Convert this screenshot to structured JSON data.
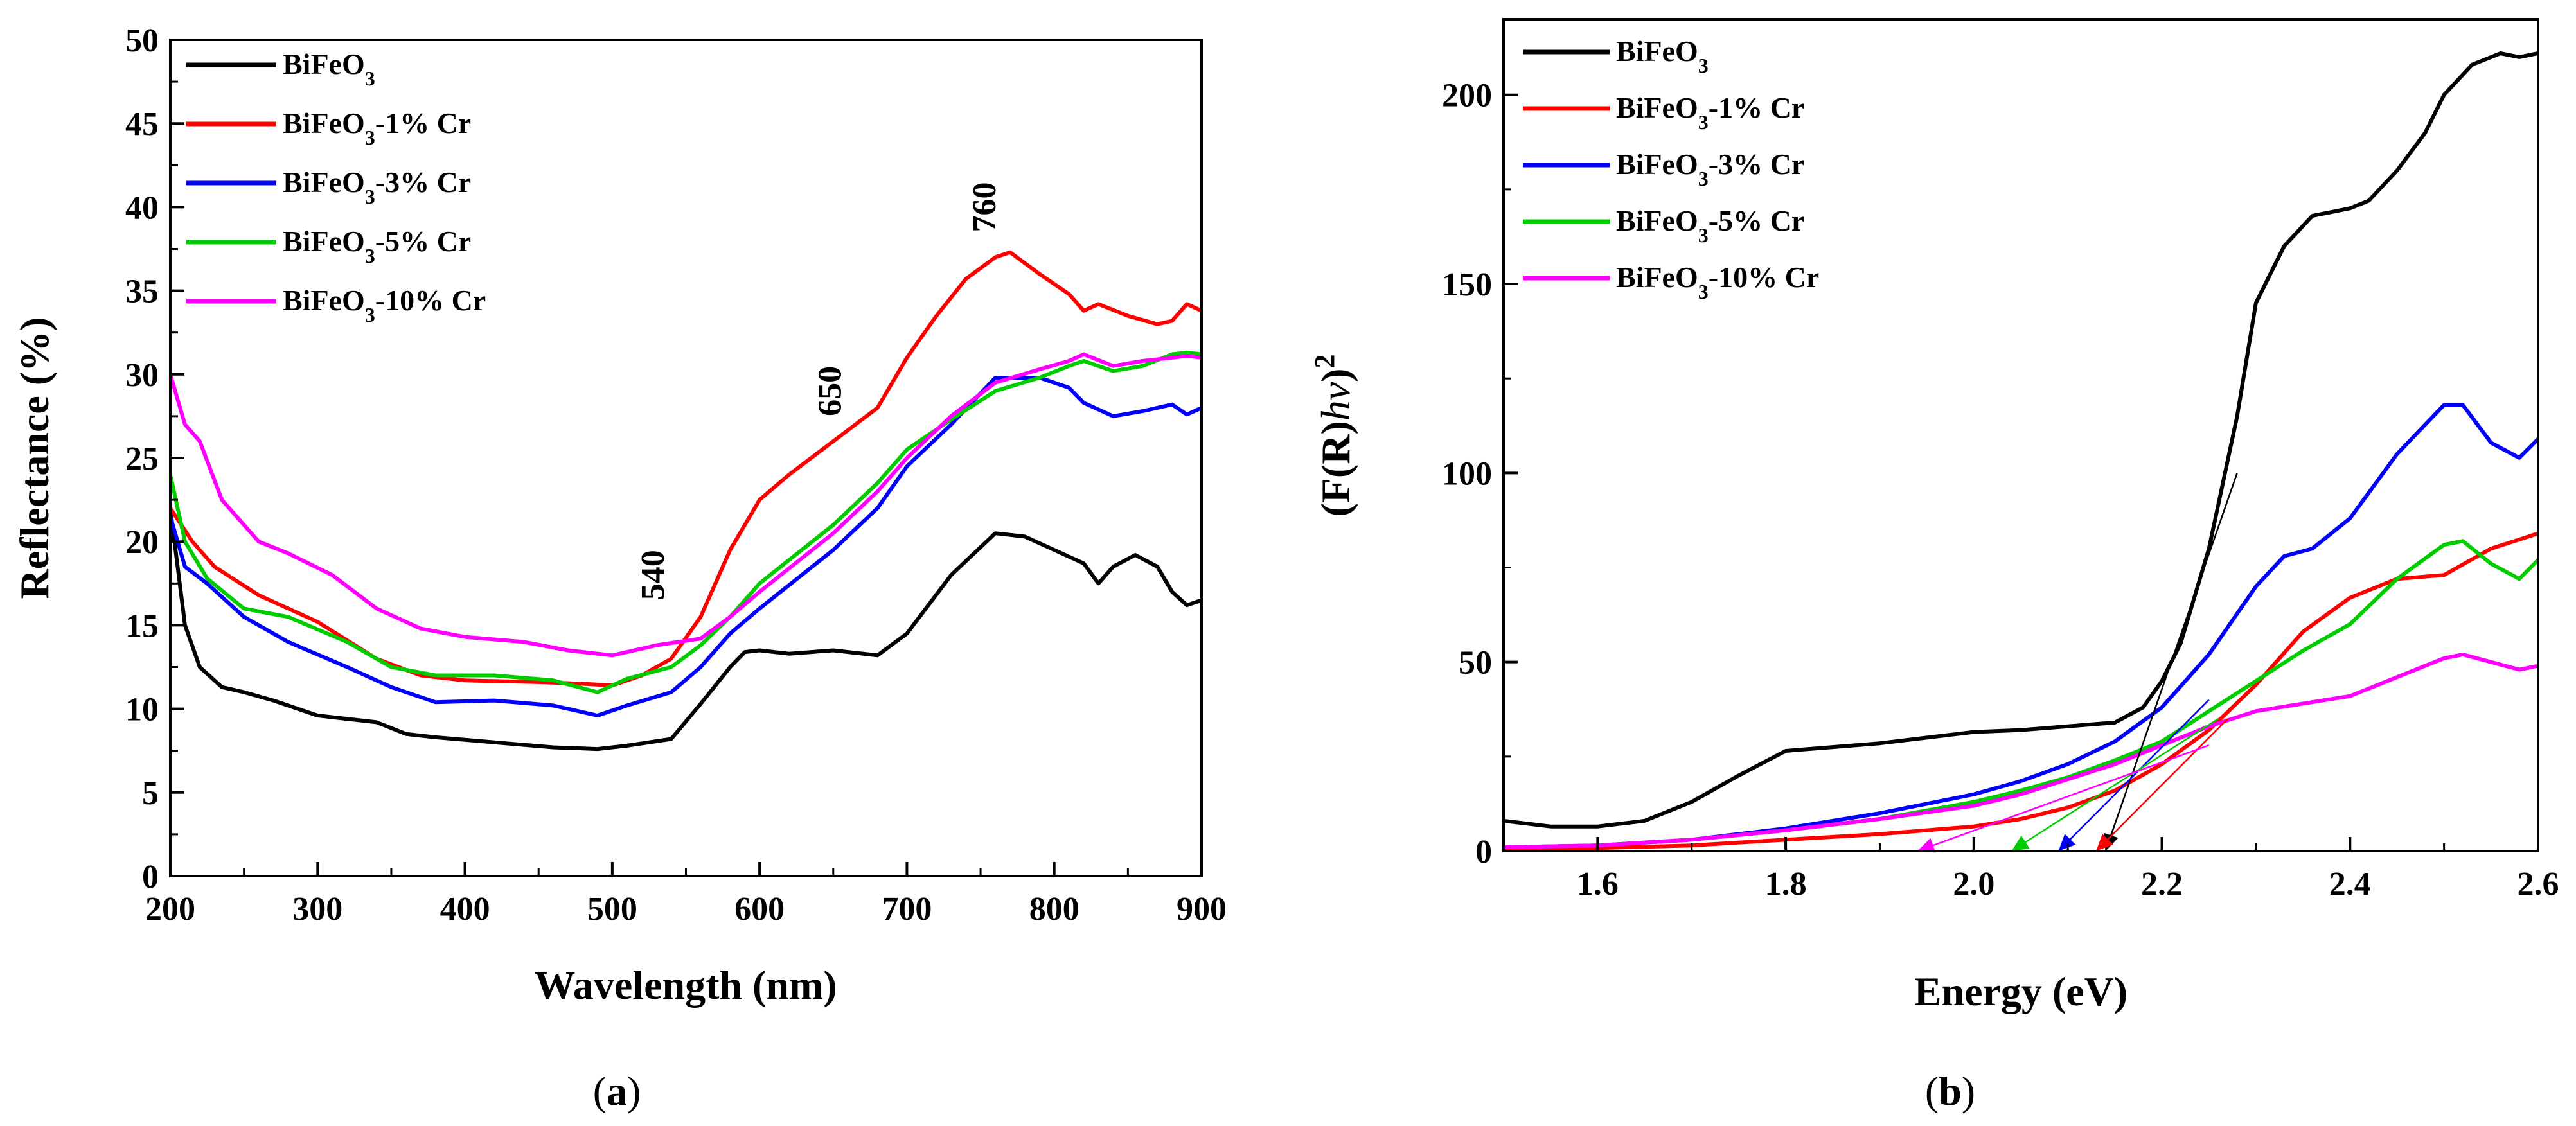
{
  "chart_data": [
    {
      "type": "line",
      "panel": "a",
      "panel_label": "a",
      "xlabel": "Wavelength (nm)",
      "ylabel": "Reflectance (%)",
      "xlim": [
        200,
        900
      ],
      "ylim": [
        0,
        50
      ],
      "x_ticks": [
        200,
        300,
        400,
        500,
        600,
        700,
        800,
        900
      ],
      "y_ticks": [
        0,
        5,
        10,
        15,
        20,
        25,
        30,
        35,
        40,
        45,
        50
      ],
      "legend_position": "top-left",
      "annotations": [
        {
          "text": "540",
          "x": 535,
          "y": 16.5
        },
        {
          "text": "650",
          "x": 655,
          "y": 27.5
        },
        {
          "text": "760",
          "x": 760,
          "y": 38.5
        }
      ],
      "series": [
        {
          "name": "BiFeO3",
          "label_main": "BiFeO",
          "label_sub": "3",
          "label_tail": "",
          "color": "#000000",
          "x": [
            200,
            210,
            220,
            235,
            250,
            270,
            300,
            340,
            360,
            380,
            420,
            460,
            490,
            510,
            540,
            560,
            580,
            590,
            600,
            620,
            650,
            680,
            700,
            730,
            760,
            780,
            800,
            820,
            830,
            840,
            855,
            870,
            880,
            890,
            900
          ],
          "y": [
            22,
            15,
            12.5,
            11.3,
            11,
            10.5,
            9.6,
            9.2,
            8.5,
            8.3,
            8,
            7.7,
            7.6,
            7.8,
            8.2,
            10.3,
            12.5,
            13.4,
            13.5,
            13.3,
            13.5,
            13.2,
            14.5,
            18,
            20.5,
            20.3,
            19.5,
            18.7,
            17.5,
            18.5,
            19.2,
            18.5,
            17,
            16.2,
            16.5
          ]
        },
        {
          "name": "BiFeO3-1% Cr",
          "label_main": "BiFeO",
          "label_sub": "3",
          "label_tail": "-1% Cr",
          "color": "#ff0000",
          "x": [
            200,
            215,
            230,
            260,
            300,
            340,
            370,
            400,
            450,
            480,
            500,
            520,
            540,
            560,
            580,
            600,
            620,
            650,
            680,
            700,
            720,
            740,
            760,
            770,
            790,
            810,
            820,
            830,
            850,
            870,
            880,
            890,
            900
          ],
          "y": [
            22,
            20,
            18.5,
            16.8,
            15.2,
            13,
            12,
            11.7,
            11.6,
            11.5,
            11.4,
            12,
            13,
            15.5,
            19.5,
            22.5,
            24,
            26,
            28,
            31,
            33.5,
            35.7,
            37,
            37.3,
            36,
            34.8,
            33.8,
            34.2,
            33.5,
            33,
            33.2,
            34.2,
            33.8
          ]
        },
        {
          "name": "BiFeO3-3% Cr",
          "label_main": "BiFeO",
          "label_sub": "3",
          "label_tail": "-3% Cr",
          "color": "#0000ff",
          "x": [
            200,
            210,
            225,
            250,
            280,
            320,
            350,
            380,
            420,
            460,
            490,
            510,
            540,
            560,
            580,
            600,
            650,
            680,
            700,
            730,
            760,
            790,
            810,
            820,
            840,
            860,
            880,
            890,
            900
          ],
          "y": [
            21.5,
            18.5,
            17.5,
            15.5,
            14,
            12.5,
            11.3,
            10.4,
            10.5,
            10.2,
            9.6,
            10.2,
            11,
            12.5,
            14.5,
            16,
            19.5,
            22,
            24.5,
            27,
            29.8,
            29.8,
            29.2,
            28.3,
            27.5,
            27.8,
            28.2,
            27.6,
            28
          ]
        },
        {
          "name": "BiFeO3-5% Cr",
          "label_main": "BiFeO",
          "label_sub": "3",
          "label_tail": "-5% Cr",
          "color": "#00cc00",
          "x": [
            200,
            210,
            225,
            250,
            280,
            320,
            350,
            380,
            420,
            460,
            490,
            510,
            540,
            560,
            580,
            600,
            650,
            680,
            700,
            730,
            760,
            790,
            810,
            820,
            840,
            860,
            880,
            890,
            900
          ],
          "y": [
            24,
            20,
            17.8,
            16,
            15.5,
            14,
            12.5,
            12,
            12,
            11.7,
            11,
            11.8,
            12.5,
            13.8,
            15.5,
            17.5,
            21,
            23.5,
            25.5,
            27.3,
            29,
            29.8,
            30.5,
            30.8,
            30.2,
            30.5,
            31.2,
            31.3,
            31.2
          ]
        },
        {
          "name": "BiFeO3-10% Cr",
          "label_main": "BiFeO",
          "label_sub": "3",
          "label_tail": "-10% Cr",
          "color": "#ff00ff",
          "x": [
            200,
            210,
            220,
            235,
            260,
            280,
            310,
            340,
            370,
            400,
            440,
            470,
            500,
            530,
            560,
            580,
            600,
            650,
            680,
            700,
            730,
            760,
            790,
            810,
            820,
            840,
            860,
            880,
            890,
            900
          ],
          "y": [
            30,
            27,
            26,
            22.5,
            20,
            19.3,
            18,
            16,
            14.8,
            14.3,
            14,
            13.5,
            13.2,
            13.8,
            14.2,
            15.5,
            17,
            20.5,
            23,
            25,
            27.5,
            29.5,
            30.3,
            30.8,
            31.2,
            30.5,
            30.8,
            31,
            31.1,
            31
          ]
        }
      ]
    },
    {
      "type": "line",
      "panel": "b",
      "panel_label": "b",
      "xlabel": "Energy (eV)",
      "ylabel_main": "(F(R)",
      "ylabel_italic": "hv",
      "ylabel_close": ")",
      "ylabel_sup": "2",
      "xlim": [
        1.5,
        2.6
      ],
      "ylim": [
        0,
        220
      ],
      "x_ticks": [
        1.6,
        1.8,
        2.0,
        2.2,
        2.4,
        2.6
      ],
      "y_ticks": [
        0,
        50,
        100,
        150,
        200
      ],
      "legend_position": "top-left",
      "tangent_lines": [
        {
          "series": "BiFeO3",
          "from": [
            2.28,
            100
          ],
          "to": [
            2.14,
            0
          ],
          "color": "#000000"
        },
        {
          "series": "BiFeO3-1% Cr",
          "from": [
            2.27,
            35
          ],
          "to": [
            2.13,
            0
          ],
          "color": "#ff0000"
        },
        {
          "series": "BiFeO3-3% Cr",
          "from": [
            2.25,
            40
          ],
          "to": [
            2.09,
            0
          ],
          "color": "#0000ff"
        },
        {
          "series": "BiFeO3-5% Cr",
          "from": [
            2.26,
            35
          ],
          "to": [
            2.04,
            0
          ],
          "color": "#00cc00"
        },
        {
          "series": "BiFeO3-10% Cr",
          "from": [
            2.25,
            28
          ],
          "to": [
            1.94,
            0
          ],
          "color": "#ff00ff"
        }
      ],
      "series": [
        {
          "name": "BiFeO3",
          "label_main": "BiFeO",
          "label_sub": "3",
          "label_tail": "",
          "color": "#000000",
          "x": [
            1.5,
            1.55,
            1.6,
            1.65,
            1.7,
            1.75,
            1.8,
            1.85,
            1.9,
            1.95,
            2.0,
            2.05,
            2.1,
            2.15,
            2.18,
            2.2,
            2.22,
            2.25,
            2.28,
            2.3,
            2.33,
            2.36,
            2.4,
            2.42,
            2.45,
            2.48,
            2.5,
            2.53,
            2.56,
            2.58,
            2.6
          ],
          "y": [
            8,
            6.5,
            6.5,
            8,
            13,
            20,
            26.5,
            27.5,
            28.5,
            30,
            31.5,
            32,
            33,
            34,
            38,
            45,
            55,
            80,
            115,
            145,
            160,
            168,
            170,
            172,
            180,
            190,
            200,
            208,
            211,
            210,
            211
          ]
        },
        {
          "name": "BiFeO3-1% Cr",
          "label_main": "BiFeO",
          "label_sub": "3",
          "label_tail": "-1% Cr",
          "color": "#ff0000",
          "x": [
            1.5,
            1.6,
            1.7,
            1.8,
            1.9,
            2.0,
            2.05,
            2.1,
            2.15,
            2.2,
            2.25,
            2.3,
            2.35,
            2.4,
            2.45,
            2.5,
            2.55,
            2.6
          ],
          "y": [
            0.5,
            0.8,
            1.5,
            3,
            4.5,
            6.5,
            8.5,
            11.5,
            16,
            23,
            32,
            44,
            58,
            67,
            72,
            73,
            80,
            84
          ]
        },
        {
          "name": "BiFeO3-3% Cr",
          "label_main": "BiFeO",
          "label_sub": "3",
          "label_tail": "-3% Cr",
          "color": "#0000ff",
          "x": [
            1.5,
            1.6,
            1.7,
            1.8,
            1.9,
            2.0,
            2.05,
            2.1,
            2.15,
            2.2,
            2.25,
            2.3,
            2.33,
            2.36,
            2.4,
            2.45,
            2.5,
            2.52,
            2.55,
            2.58,
            2.6
          ],
          "y": [
            1,
            1.5,
            3,
            6,
            10,
            15,
            18.5,
            23,
            29,
            38,
            52,
            70,
            78,
            80,
            88,
            105,
            118,
            118,
            108,
            104,
            109
          ]
        },
        {
          "name": "BiFeO3-5% Cr",
          "label_main": "BiFeO",
          "label_sub": "3",
          "label_tail": "-5% Cr",
          "color": "#00cc00",
          "x": [
            1.5,
            1.6,
            1.7,
            1.8,
            1.9,
            2.0,
            2.05,
            2.1,
            2.15,
            2.2,
            2.25,
            2.3,
            2.35,
            2.4,
            2.45,
            2.5,
            2.52,
            2.55,
            2.58,
            2.6
          ],
          "y": [
            1,
            1.5,
            3,
            5.5,
            8.5,
            13,
            16,
            19.5,
            24,
            29,
            37,
            45,
            53,
            60,
            72,
            81,
            82,
            76,
            72,
            77
          ]
        },
        {
          "name": "BiFeO3-10% Cr",
          "label_main": "BiFeO",
          "label_sub": "3",
          "label_tail": "-10% Cr",
          "color": "#ff00ff",
          "x": [
            1.5,
            1.6,
            1.7,
            1.8,
            1.9,
            2.0,
            2.05,
            2.1,
            2.15,
            2.2,
            2.25,
            2.3,
            2.35,
            2.4,
            2.45,
            2.5,
            2.52,
            2.55,
            2.58,
            2.6
          ],
          "y": [
            1,
            1.5,
            3,
            5.5,
            8.5,
            12,
            15,
            19,
            23,
            28,
            33,
            37,
            39,
            41,
            46,
            51,
            52,
            50,
            48,
            49
          ]
        }
      ]
    }
  ]
}
